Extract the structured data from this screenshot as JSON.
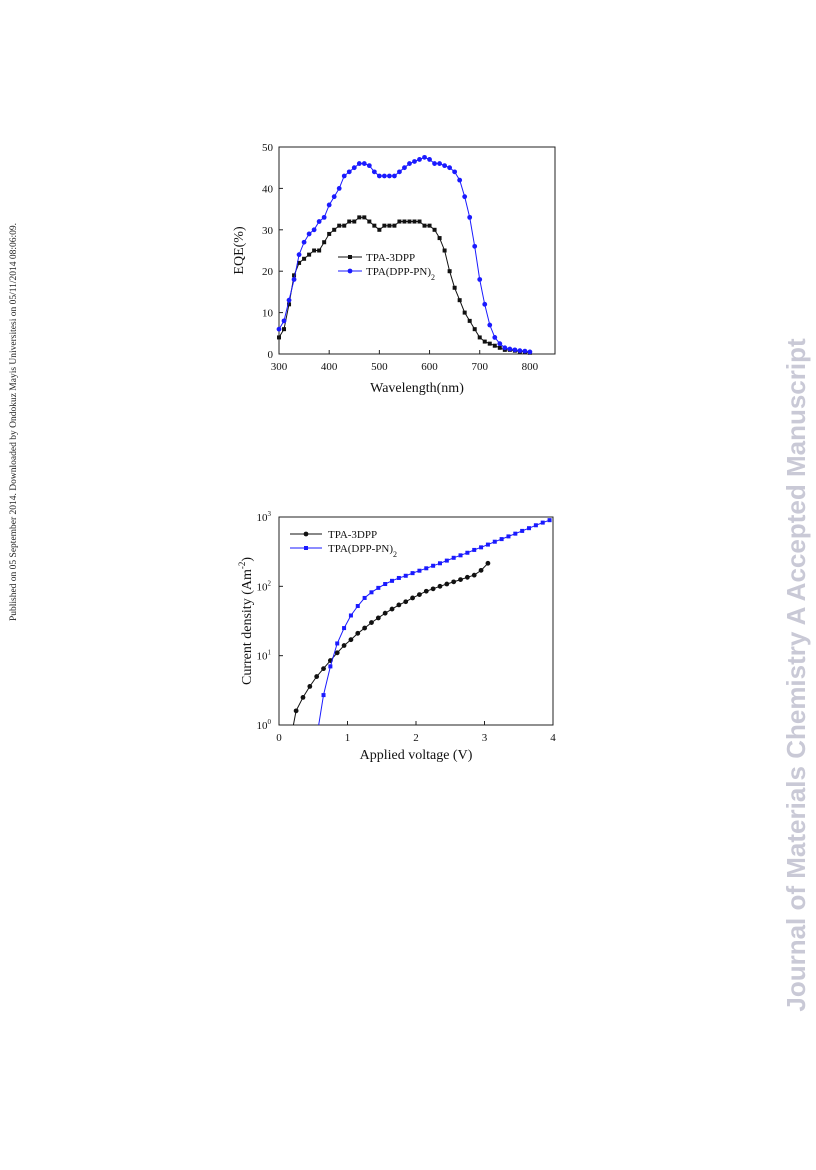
{
  "side_text_left": "Published on 05 September 2014. Downloaded by Ondokuz Mayis Universitesi on 05/11/2014 08:06:09.",
  "side_text_right": "Journal of Materials Chemistry A Accepted Manuscript",
  "chart_data": [
    {
      "type": "line",
      "title": "",
      "xlabel": "Wavelength(nm)",
      "ylabel": "EQE(%)",
      "xlim": [
        300,
        850
      ],
      "ylim": [
        0,
        50
      ],
      "xticks": [
        300,
        400,
        500,
        600,
        700,
        800
      ],
      "yticks": [
        0,
        10,
        20,
        30,
        40,
        50
      ],
      "grid": false,
      "legend": "center-right",
      "series": [
        {
          "name": "TPA-3DPP",
          "color": "#111111",
          "marker": "square",
          "x": [
            300,
            310,
            320,
            330,
            340,
            350,
            360,
            370,
            380,
            390,
            400,
            410,
            420,
            430,
            440,
            450,
            460,
            470,
            480,
            490,
            500,
            510,
            520,
            530,
            540,
            550,
            560,
            570,
            580,
            590,
            600,
            610,
            620,
            630,
            640,
            650,
            660,
            670,
            680,
            690,
            700,
            710,
            720,
            730,
            740,
            750,
            760,
            770,
            780,
            790,
            800
          ],
          "y": [
            4,
            6,
            12,
            19,
            22,
            23,
            24,
            25,
            25,
            27,
            29,
            30,
            31,
            31,
            32,
            32,
            33,
            33,
            32,
            31,
            30,
            31,
            31,
            31,
            32,
            32,
            32,
            32,
            32,
            31,
            31,
            30,
            28,
            25,
            20,
            16,
            13,
            10,
            8,
            6,
            4,
            3,
            2.5,
            2,
            1.5,
            1,
            1,
            0.8,
            0.6,
            0.5,
            0.3
          ]
        },
        {
          "name": "TPA(DPP-PN)",
          "name_sub": "2",
          "color": "#1a1aff",
          "marker": "circle",
          "x": [
            300,
            310,
            320,
            330,
            340,
            350,
            360,
            370,
            380,
            390,
            400,
            410,
            420,
            430,
            440,
            450,
            460,
            470,
            480,
            490,
            500,
            510,
            520,
            530,
            540,
            550,
            560,
            570,
            580,
            590,
            600,
            610,
            620,
            630,
            640,
            650,
            660,
            670,
            680,
            690,
            700,
            710,
            720,
            730,
            740,
            750,
            760,
            770,
            780,
            790,
            800
          ],
          "y": [
            6,
            8,
            13,
            18,
            24,
            27,
            29,
            30,
            32,
            33,
            36,
            38,
            40,
            43,
            44,
            45,
            46,
            46,
            45.5,
            44,
            43,
            43,
            43,
            43,
            44,
            45,
            46,
            46.5,
            47,
            47.5,
            47,
            46,
            46,
            45.5,
            45,
            44,
            42,
            38,
            33,
            26,
            18,
            12,
            7,
            4,
            2.5,
            1.5,
            1.2,
            1,
            0.8,
            0.7,
            0.5
          ]
        }
      ]
    },
    {
      "type": "line",
      "title": "",
      "xlabel": "Applied voltage (V)",
      "ylabel": "Current density (Am",
      "ylabel_sup": "-2",
      "ylabel_close": ")",
      "yscale": "log",
      "xlim": [
        0,
        4
      ],
      "ylim": [
        1,
        1000
      ],
      "xticks": [
        0,
        1,
        2,
        3,
        4
      ],
      "yticks": [
        {
          "value": 1,
          "base": "10",
          "exp": "0"
        },
        {
          "value": 10,
          "base": "10",
          "exp": "1"
        },
        {
          "value": 100,
          "base": "10",
          "exp": "2"
        },
        {
          "value": 1000,
          "base": "10",
          "exp": "3"
        }
      ],
      "grid": false,
      "legend": "top-left",
      "series": [
        {
          "name": "TPA-3DPP",
          "color": "#111111",
          "marker": "circle",
          "x": [
            0.25,
            0.35,
            0.45,
            0.55,
            0.65,
            0.75,
            0.85,
            0.95,
            1.05,
            1.15,
            1.25,
            1.35,
            1.45,
            1.55,
            1.65,
            1.75,
            1.85,
            1.95,
            2.05,
            2.15,
            2.25,
            2.35,
            2.45,
            2.55,
            2.65,
            2.75,
            2.85,
            2.95,
            3.05
          ],
          "y": [
            1.6,
            2.5,
            3.6,
            5,
            6.5,
            8.5,
            11,
            14,
            17,
            21,
            25,
            30,
            35,
            41,
            47,
            54,
            60,
            68,
            76,
            85,
            92,
            100,
            108,
            116,
            125,
            135,
            145,
            170,
            215
          ]
        },
        {
          "name": "TPA(DPP-PN)",
          "name_sub": "2",
          "color": "#1a1aff",
          "marker": "square",
          "x": [
            0.65,
            0.75,
            0.85,
            0.95,
            1.05,
            1.15,
            1.25,
            1.35,
            1.45,
            1.55,
            1.65,
            1.75,
            1.85,
            1.95,
            2.05,
            2.15,
            2.25,
            2.35,
            2.45,
            2.55,
            2.65,
            2.75,
            2.85,
            2.95,
            3.05,
            3.15,
            3.25,
            3.35,
            3.45,
            3.55,
            3.65,
            3.75,
            3.85,
            3.95
          ],
          "y": [
            2.7,
            7,
            15,
            25,
            38,
            52,
            68,
            82,
            95,
            108,
            120,
            132,
            142,
            155,
            168,
            182,
            198,
            215,
            235,
            258,
            280,
            305,
            335,
            365,
            400,
            440,
            480,
            525,
            575,
            630,
            690,
            760,
            830,
            900
          ]
        }
      ]
    }
  ]
}
